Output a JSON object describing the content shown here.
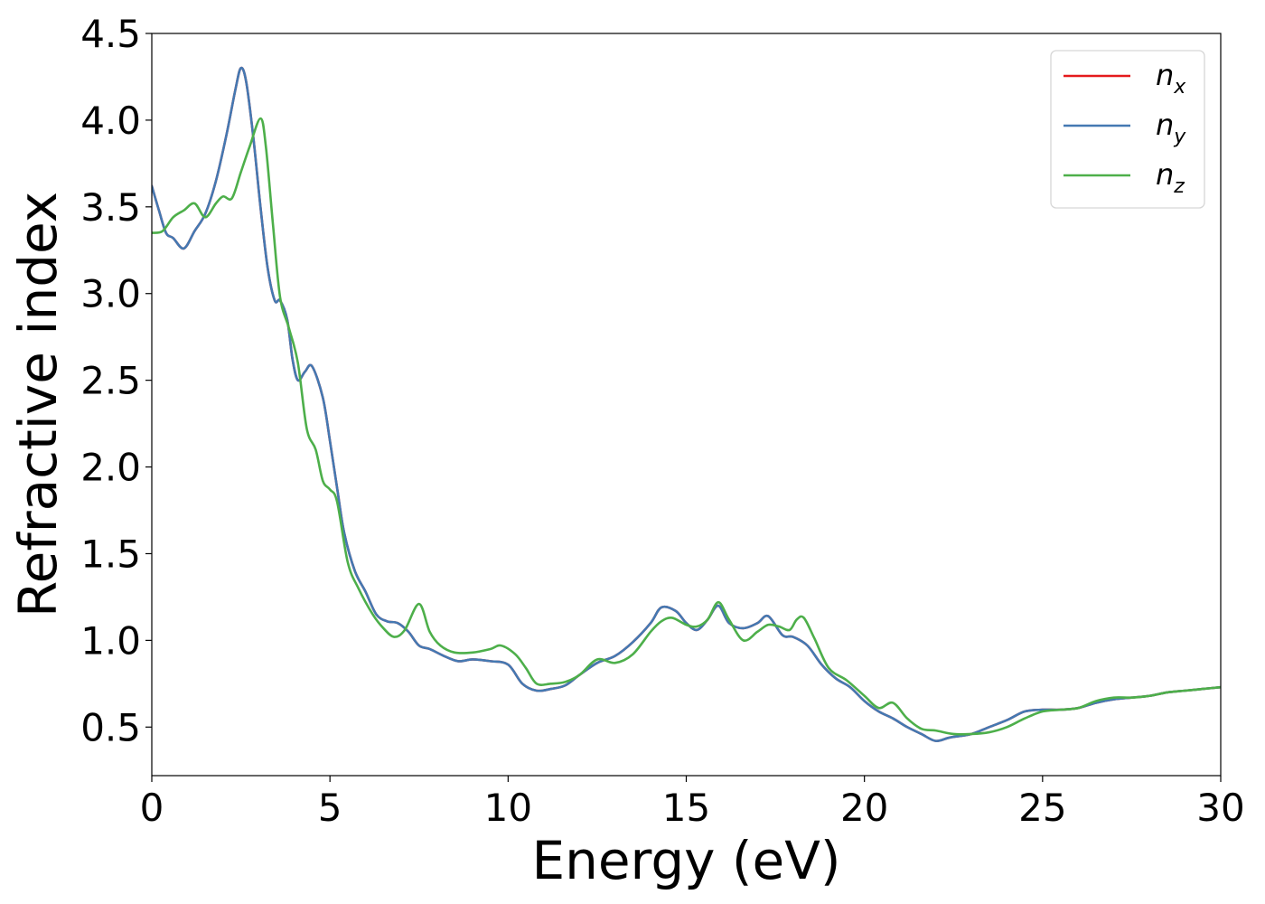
{
  "chart_data": {
    "type": "line",
    "xlabel": "Energy (eV)",
    "ylabel": "Refractive index",
    "xlim": [
      0,
      30
    ],
    "ylim": [
      0.22,
      4.5
    ],
    "xticks": [
      0,
      5,
      10,
      15,
      20,
      25,
      30
    ],
    "xtick_labels": [
      "0",
      "5",
      "10",
      "15",
      "20",
      "25",
      "30"
    ],
    "yticks": [
      0.5,
      1.0,
      1.5,
      2.0,
      2.5,
      3.0,
      3.5,
      4.0,
      4.5
    ],
    "ytick_labels": [
      "0.5",
      "1.0",
      "1.5",
      "2.0",
      "2.5",
      "3.0",
      "3.5",
      "4.0",
      "4.5"
    ],
    "grid": false,
    "legend_position": "top-right",
    "series": [
      {
        "name": "n",
        "subscript": "x",
        "color": "#e41a1c",
        "x": [
          0,
          0.2,
          0.4,
          0.6,
          0.9,
          1.2,
          1.5,
          1.8,
          2.1,
          2.35,
          2.5,
          2.65,
          2.85,
          3.05,
          3.25,
          3.45,
          3.6,
          3.8,
          3.95,
          4.1,
          4.3,
          4.5,
          4.8,
          5.0,
          5.2,
          5.4,
          5.7,
          6.0,
          6.3,
          6.6,
          6.9,
          7.2,
          7.5,
          7.8,
          8.2,
          8.6,
          9.0,
          9.5,
          10.0,
          10.4,
          10.8,
          11.2,
          11.6,
          12.0,
          12.5,
          13.0,
          13.5,
          14.0,
          14.3,
          14.7,
          15.0,
          15.3,
          15.6,
          15.9,
          16.2,
          16.6,
          17.0,
          17.3,
          17.7,
          18.0,
          18.4,
          18.8,
          19.2,
          19.6,
          20.0,
          20.4,
          20.8,
          21.2,
          21.6,
          22.0,
          22.4,
          23.0,
          23.5,
          24.0,
          24.5,
          25.0,
          25.5,
          26.0,
          26.5,
          27.0,
          27.5,
          28.0,
          28.5,
          29.0,
          29.5,
          30.0
        ],
        "values": [
          3.62,
          3.48,
          3.35,
          3.32,
          3.26,
          3.36,
          3.46,
          3.65,
          3.92,
          4.18,
          4.3,
          4.22,
          3.9,
          3.5,
          3.15,
          2.96,
          2.96,
          2.85,
          2.62,
          2.5,
          2.55,
          2.58,
          2.4,
          2.15,
          1.88,
          1.62,
          1.4,
          1.28,
          1.15,
          1.11,
          1.1,
          1.05,
          0.97,
          0.95,
          0.91,
          0.88,
          0.89,
          0.88,
          0.86,
          0.75,
          0.71,
          0.72,
          0.74,
          0.8,
          0.87,
          0.91,
          0.99,
          1.1,
          1.19,
          1.17,
          1.1,
          1.06,
          1.12,
          1.2,
          1.1,
          1.07,
          1.1,
          1.14,
          1.03,
          1.02,
          0.97,
          0.86,
          0.78,
          0.73,
          0.65,
          0.59,
          0.55,
          0.5,
          0.46,
          0.42,
          0.44,
          0.46,
          0.5,
          0.54,
          0.59,
          0.6,
          0.6,
          0.61,
          0.64,
          0.66,
          0.67,
          0.68,
          0.7,
          0.71,
          0.72,
          0.73
        ]
      },
      {
        "name": "n",
        "subscript": "y",
        "color": "#4479b2",
        "x": [
          0,
          0.2,
          0.4,
          0.6,
          0.9,
          1.2,
          1.5,
          1.8,
          2.1,
          2.35,
          2.5,
          2.65,
          2.85,
          3.05,
          3.25,
          3.45,
          3.6,
          3.8,
          3.95,
          4.1,
          4.3,
          4.5,
          4.8,
          5.0,
          5.2,
          5.4,
          5.7,
          6.0,
          6.3,
          6.6,
          6.9,
          7.2,
          7.5,
          7.8,
          8.2,
          8.6,
          9.0,
          9.5,
          10.0,
          10.4,
          10.8,
          11.2,
          11.6,
          12.0,
          12.5,
          13.0,
          13.5,
          14.0,
          14.3,
          14.7,
          15.0,
          15.3,
          15.6,
          15.9,
          16.2,
          16.6,
          17.0,
          17.3,
          17.7,
          18.0,
          18.4,
          18.8,
          19.2,
          19.6,
          20.0,
          20.4,
          20.8,
          21.2,
          21.6,
          22.0,
          22.4,
          23.0,
          23.5,
          24.0,
          24.5,
          25.0,
          25.5,
          26.0,
          26.5,
          27.0,
          27.5,
          28.0,
          28.5,
          29.0,
          29.5,
          30.0
        ],
        "values": [
          3.62,
          3.48,
          3.35,
          3.32,
          3.26,
          3.36,
          3.46,
          3.65,
          3.92,
          4.18,
          4.3,
          4.22,
          3.9,
          3.5,
          3.15,
          2.96,
          2.96,
          2.85,
          2.62,
          2.5,
          2.55,
          2.58,
          2.4,
          2.15,
          1.88,
          1.62,
          1.4,
          1.28,
          1.15,
          1.11,
          1.1,
          1.05,
          0.97,
          0.95,
          0.91,
          0.88,
          0.89,
          0.88,
          0.86,
          0.75,
          0.71,
          0.72,
          0.74,
          0.8,
          0.87,
          0.91,
          0.99,
          1.1,
          1.19,
          1.17,
          1.1,
          1.06,
          1.12,
          1.2,
          1.1,
          1.07,
          1.1,
          1.14,
          1.03,
          1.02,
          0.97,
          0.86,
          0.78,
          0.73,
          0.65,
          0.59,
          0.55,
          0.5,
          0.46,
          0.42,
          0.44,
          0.46,
          0.5,
          0.54,
          0.59,
          0.6,
          0.6,
          0.61,
          0.64,
          0.66,
          0.67,
          0.68,
          0.7,
          0.71,
          0.72,
          0.73
        ]
      },
      {
        "name": "n",
        "subscript": "z",
        "color": "#4daf4a",
        "x": [
          0,
          0.3,
          0.6,
          0.9,
          1.2,
          1.5,
          1.8,
          2.0,
          2.25,
          2.5,
          2.75,
          3.05,
          3.2,
          3.4,
          3.6,
          3.85,
          4.1,
          4.35,
          4.6,
          4.8,
          5.0,
          5.2,
          5.5,
          5.8,
          6.2,
          6.5,
          6.8,
          7.1,
          7.5,
          7.8,
          8.1,
          8.5,
          9.0,
          9.5,
          9.8,
          10.2,
          10.5,
          10.8,
          11.2,
          11.6,
          12.0,
          12.5,
          13.0,
          13.5,
          14.0,
          14.3,
          14.6,
          15.0,
          15.3,
          15.6,
          15.9,
          16.2,
          16.6,
          17.0,
          17.3,
          17.6,
          17.9,
          18.1,
          18.3,
          18.6,
          19.0,
          19.5,
          20.0,
          20.4,
          20.8,
          21.2,
          21.6,
          22.0,
          22.5,
          23.0,
          23.5,
          24.0,
          24.5,
          25.0,
          25.5,
          26.0,
          26.5,
          27.0,
          27.5,
          28.0,
          28.5,
          29.0,
          29.5,
          30.0
        ],
        "values": [
          3.35,
          3.36,
          3.44,
          3.48,
          3.52,
          3.44,
          3.52,
          3.56,
          3.55,
          3.7,
          3.85,
          4.01,
          3.85,
          3.4,
          2.98,
          2.8,
          2.6,
          2.22,
          2.1,
          1.92,
          1.87,
          1.8,
          1.45,
          1.3,
          1.15,
          1.07,
          1.02,
          1.06,
          1.21,
          1.05,
          0.97,
          0.93,
          0.93,
          0.95,
          0.97,
          0.92,
          0.84,
          0.75,
          0.75,
          0.76,
          0.8,
          0.89,
          0.87,
          0.92,
          1.05,
          1.11,
          1.13,
          1.09,
          1.08,
          1.12,
          1.22,
          1.12,
          1.0,
          1.05,
          1.09,
          1.08,
          1.06,
          1.12,
          1.13,
          1.01,
          0.84,
          0.77,
          0.68,
          0.61,
          0.64,
          0.55,
          0.49,
          0.48,
          0.46,
          0.46,
          0.47,
          0.5,
          0.55,
          0.59,
          0.6,
          0.61,
          0.65,
          0.67,
          0.67,
          0.68,
          0.7,
          0.71,
          0.72,
          0.73
        ]
      }
    ]
  }
}
